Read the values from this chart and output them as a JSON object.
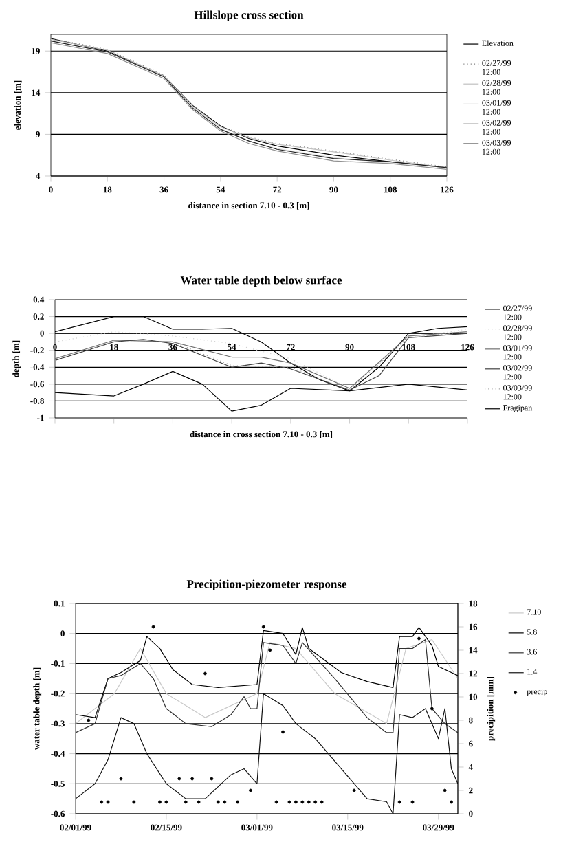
{
  "chart_data": [
    {
      "type": "line",
      "title": "Hillslope cross section",
      "xlabel": "distance in  section 7.10 - 0.3 [m]",
      "ylabel": "elevation [m]",
      "xlim": [
        0,
        126
      ],
      "xticks": [
        0,
        18,
        36,
        54,
        72,
        90,
        108,
        126
      ],
      "ylim": [
        4,
        21
      ],
      "yticks": [
        4,
        9,
        14,
        19
      ],
      "grid": "y",
      "legend": "right",
      "x": [
        0,
        18,
        36,
        45,
        54,
        63,
        72,
        90,
        108,
        126
      ],
      "series": [
        {
          "name": "Elevation",
          "color": "#000000",
          "values": [
            20.5,
            19,
            16,
            12.5,
            10,
            8.5,
            7.6,
            6.5,
            5.7,
            5
          ]
        },
        {
          "name": "02/27/99 12:00",
          "color": "#808080",
          "line_style": "dotted",
          "values": [
            20.5,
            19.2,
            16.1,
            12.5,
            10,
            8.7,
            7.9,
            7.0,
            6.0,
            5.1
          ]
        },
        {
          "name": "02/28/99 12:00",
          "color": "#c0c0c0",
          "values": [
            20.4,
            19.1,
            16,
            12.4,
            9.9,
            8.6,
            7.8,
            6.9,
            5.9,
            5.0
          ]
        },
        {
          "name": "03/01/99 12:00",
          "color": "#e0e0e0",
          "values": [
            20.2,
            18.9,
            15.9,
            12.3,
            9.7,
            8.2,
            7.3,
            6.2,
            5.6,
            5.0
          ]
        },
        {
          "name": "03/02/99 12:00",
          "color": "#909090",
          "values": [
            20.0,
            18.7,
            15.7,
            12.0,
            9.4,
            7.9,
            7.0,
            5.8,
            5.5,
            4.8
          ]
        },
        {
          "name": "03/03/99 12:00",
          "color": "#202020",
          "values": [
            20.2,
            18.9,
            15.9,
            12.2,
            9.6,
            8.2,
            7.2,
            6.1,
            5.7,
            5.0
          ]
        }
      ]
    },
    {
      "type": "line",
      "title": "Water table depth below surface",
      "xlabel": "distance in cross section 7.10 - 0.3  [m]",
      "ylabel": "depth [m]",
      "xlim": [
        0,
        126
      ],
      "xticks": [
        0,
        18,
        36,
        54,
        72,
        90,
        108,
        126
      ],
      "ylim": [
        -1,
        0.4
      ],
      "yticks": [
        -1,
        -0.8,
        -0.6,
        -0.4,
        -0.2,
        0,
        0.2,
        0.4
      ],
      "grid": "y",
      "legend": "right",
      "series": [
        {
          "name": "02/27/99 12:00",
          "color": "#000000",
          "x": [
            0,
            18,
            27,
            36,
            45,
            54,
            63,
            72,
            81,
            90,
            99,
            108,
            117,
            126
          ],
          "values": [
            0.02,
            0.2,
            0.2,
            0.05,
            0.05,
            0.06,
            -0.1,
            -0.35,
            -0.55,
            -0.68,
            -0.4,
            0,
            0.06,
            0.08
          ]
        },
        {
          "name": "02/28/99 12:00",
          "color": "#d0d0d0",
          "line_style": "dotted",
          "x": [
            0,
            18,
            36,
            54,
            72,
            90,
            108,
            126
          ],
          "values": [
            -0.1,
            0.02,
            -0.03,
            -0.12,
            -0.3,
            -0.65,
            -0.05,
            0.05
          ]
        },
        {
          "name": "03/01/99 12:00",
          "color": "#707070",
          "x": [
            0,
            18,
            36,
            54,
            63,
            72,
            90,
            108,
            126
          ],
          "values": [
            -0.3,
            -0.08,
            -0.1,
            -0.28,
            -0.28,
            -0.35,
            -0.65,
            -0.03,
            0.02
          ]
        },
        {
          "name": "03/02/99 12:00",
          "color": "#404040",
          "x": [
            0,
            18,
            27,
            36,
            54,
            63,
            72,
            90,
            99,
            108,
            126
          ],
          "values": [
            -0.32,
            -0.1,
            -0.07,
            -0.12,
            -0.4,
            -0.35,
            -0.42,
            -0.67,
            -0.5,
            -0.05,
            0.0
          ]
        },
        {
          "name": "03/03/99 12:00",
          "color": "#a0a0a0",
          "line_style": "dotted",
          "x": [
            0,
            18,
            36,
            54,
            72,
            90,
            108,
            126
          ],
          "values": [
            -0.32,
            -0.1,
            -0.1,
            -0.38,
            -0.4,
            -0.67,
            -0.05,
            0.02
          ]
        },
        {
          "name": "Fragipan",
          "color": "#000000",
          "x": [
            0,
            9,
            18,
            27,
            36,
            45,
            54,
            63,
            72,
            90,
            108,
            126
          ],
          "values": [
            -0.7,
            -0.72,
            -0.74,
            -0.6,
            -0.45,
            -0.6,
            -0.92,
            -0.85,
            -0.65,
            -0.68,
            -0.6,
            -0.67
          ]
        }
      ]
    },
    {
      "type": "line",
      "title": "Precipition-piezometer response",
      "ylabel": "water table depth [m]",
      "y2label": "precipition [mm]",
      "xlim": [
        "1999-02-01",
        "1999-04-01"
      ],
      "xticks": [
        {
          "value": "1999-02-01",
          "label": "02/01/99"
        },
        {
          "value": "1999-02-15",
          "label": "02/15/99"
        },
        {
          "value": "1999-03-01",
          "label": "03/01/99"
        },
        {
          "value": "1999-03-15",
          "label": "03/15/99"
        },
        {
          "value": "1999-03-29",
          "label": "03/29/99"
        }
      ],
      "ylim": [
        -0.6,
        0.1
      ],
      "yticks": [
        -0.6,
        -0.5,
        -0.4,
        -0.3,
        -0.2,
        -0.1,
        0,
        0.1
      ],
      "y2lim": [
        0,
        18
      ],
      "y2ticks": [
        0,
        2,
        4,
        6,
        8,
        10,
        12,
        14,
        16,
        18
      ],
      "grid": "y",
      "legend": "right",
      "series": [
        {
          "name": "7.10",
          "color": "#c8c8c8",
          "x": [
            "1999-02-01",
            "1999-02-07",
            "1999-02-11",
            "1999-02-15",
            "1999-02-21",
            "1999-03-01",
            "1999-03-03",
            "1999-03-07",
            "1999-03-13",
            "1999-03-21",
            "1999-03-24",
            "1999-03-28",
            "1999-04-01"
          ],
          "values": [
            -0.3,
            -0.2,
            -0.05,
            -0.2,
            -0.28,
            -0.2,
            -0.03,
            -0.05,
            -0.2,
            -0.3,
            -0.05,
            -0.02,
            -0.15
          ]
        },
        {
          "name": "5.8",
          "color": "#000000",
          "x": [
            "1999-02-01",
            "1999-02-04",
            "1999-02-06",
            "1999-02-08",
            "1999-02-11",
            "1999-02-12",
            "1999-02-14",
            "1999-02-16",
            "1999-02-19",
            "1999-02-23",
            "1999-03-01",
            "1999-03-02",
            "1999-03-05",
            "1999-03-07",
            "1999-03-08",
            "1999-03-09",
            "1999-03-14",
            "1999-03-18",
            "1999-03-22",
            "1999-03-23",
            "1999-03-25",
            "1999-03-26",
            "1999-03-28",
            "1999-03-29",
            "1999-04-01"
          ],
          "values": [
            -0.27,
            -0.28,
            -0.15,
            -0.13,
            -0.09,
            -0.01,
            -0.05,
            -0.12,
            -0.17,
            -0.18,
            -0.17,
            0.01,
            0.0,
            -0.07,
            0.02,
            -0.05,
            -0.13,
            -0.16,
            -0.18,
            -0.01,
            -0.01,
            0.02,
            -0.04,
            -0.11,
            -0.14
          ]
        },
        {
          "name": "3.6",
          "color": "#303030",
          "x": [
            "1999-02-01",
            "1999-02-04",
            "1999-02-06",
            "1999-02-08",
            "1999-02-11",
            "1999-02-13",
            "1999-02-15",
            "1999-02-18",
            "1999-02-22",
            "1999-02-25",
            "1999-02-27",
            "1999-02-28",
            "1999-03-01",
            "1999-03-02",
            "1999-03-05",
            "1999-03-07",
            "1999-03-08",
            "1999-03-13",
            "1999-03-18",
            "1999-03-21",
            "1999-03-22",
            "1999-03-23",
            "1999-03-25",
            "1999-03-27",
            "1999-03-28",
            "1999-03-30",
            "1999-04-01"
          ],
          "values": [
            -0.33,
            -0.3,
            -0.15,
            -0.14,
            -0.1,
            -0.15,
            -0.25,
            -0.3,
            -0.31,
            -0.27,
            -0.21,
            -0.25,
            -0.25,
            -0.03,
            -0.04,
            -0.1,
            -0.03,
            -0.15,
            -0.28,
            -0.33,
            -0.33,
            -0.05,
            -0.05,
            -0.02,
            -0.25,
            -0.3,
            -0.33
          ]
        },
        {
          "name": "1.4",
          "color": "#101010",
          "x": [
            "1999-02-01",
            "1999-02-04",
            "1999-02-06",
            "1999-02-08",
            "1999-02-10",
            "1999-02-12",
            "1999-02-15",
            "1999-02-18",
            "1999-02-21",
            "1999-02-25",
            "1999-02-27",
            "1999-03-01",
            "1999-03-02",
            "1999-03-05",
            "1999-03-07",
            "1999-03-10",
            "1999-03-14",
            "1999-03-18",
            "1999-03-21",
            "1999-03-22",
            "1999-03-23",
            "1999-03-25",
            "1999-03-27",
            "1999-03-29",
            "1999-03-30",
            "1999-03-31",
            "1999-04-01"
          ],
          "values": [
            -0.55,
            -0.5,
            -0.42,
            -0.28,
            -0.3,
            -0.4,
            -0.5,
            -0.55,
            -0.55,
            -0.47,
            -0.45,
            -0.5,
            -0.2,
            -0.24,
            -0.3,
            -0.35,
            -0.45,
            -0.55,
            -0.56,
            -0.6,
            -0.27,
            -0.28,
            -0.25,
            -0.35,
            -0.25,
            -0.45,
            -0.5
          ]
        },
        {
          "name": "precip",
          "type": "scatter",
          "axis": "y2",
          "color": "#000000",
          "x": [
            "1999-02-03",
            "1999-02-05",
            "1999-02-06",
            "1999-02-08",
            "1999-02-10",
            "1999-02-13",
            "1999-02-14",
            "1999-02-15",
            "1999-02-17",
            "1999-02-18",
            "1999-02-19",
            "1999-02-20",
            "1999-02-21",
            "1999-02-22",
            "1999-02-23",
            "1999-02-24",
            "1999-02-26",
            "1999-02-28",
            "1999-03-02",
            "1999-03-03",
            "1999-03-04",
            "1999-03-05",
            "1999-03-06",
            "1999-03-07",
            "1999-03-08",
            "1999-03-09",
            "1999-03-10",
            "1999-03-11",
            "1999-03-16",
            "1999-03-23",
            "1999-03-25",
            "1999-03-26",
            "1999-03-28",
            "1999-03-30",
            "1999-03-31"
          ],
          "values": [
            8,
            1,
            1,
            3,
            1,
            16,
            1,
            1,
            3,
            1,
            3,
            1,
            12,
            3,
            1,
            1,
            1,
            2,
            16,
            14,
            1,
            7,
            1,
            1,
            1,
            1,
            1,
            1,
            2,
            1,
            1,
            15,
            9,
            2,
            1
          ]
        }
      ]
    }
  ]
}
